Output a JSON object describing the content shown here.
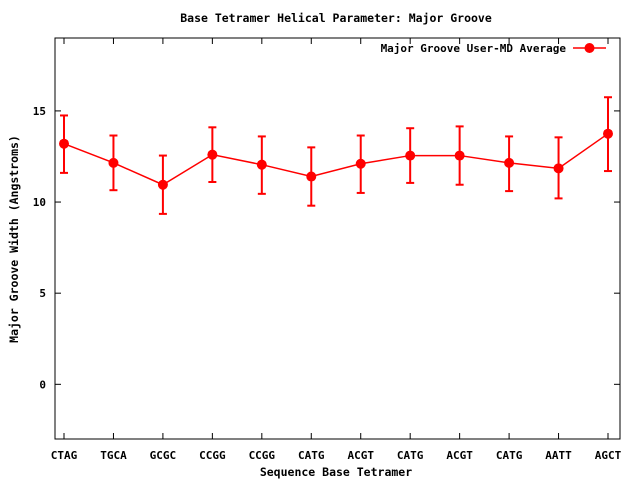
{
  "chart_data": {
    "type": "line",
    "title": "Base Tetramer Helical Parameter: Major Groove",
    "xlabel": "Sequence Base Tetramer",
    "ylabel": "Major Groove Width (Angstroms)",
    "ylim": [
      -3,
      19
    ],
    "yticks": [
      "0",
      "5",
      "10",
      "15"
    ],
    "categories": [
      "CTAG",
      "TGCA",
      "GCGC",
      "CCGG",
      "CCGG",
      "CATG",
      "ACGT",
      "CATG",
      "ACGT",
      "CATG",
      "AATT",
      "AGCT"
    ],
    "legend_position": "top-right",
    "grid": false,
    "series": [
      {
        "name": "Major Groove User-MD Average",
        "color": "#ff0000",
        "values": [
          13.2,
          12.15,
          10.95,
          12.6,
          12.05,
          11.4,
          12.1,
          12.55,
          12.55,
          12.15,
          11.85,
          13.75
        ],
        "error_low": [
          11.6,
          10.65,
          9.35,
          11.1,
          10.45,
          9.8,
          10.5,
          11.05,
          10.95,
          10.6,
          10.2,
          11.7
        ],
        "error_high": [
          14.75,
          13.65,
          12.55,
          14.1,
          13.6,
          13.0,
          13.65,
          14.05,
          14.15,
          13.6,
          13.55,
          15.75
        ]
      }
    ]
  }
}
